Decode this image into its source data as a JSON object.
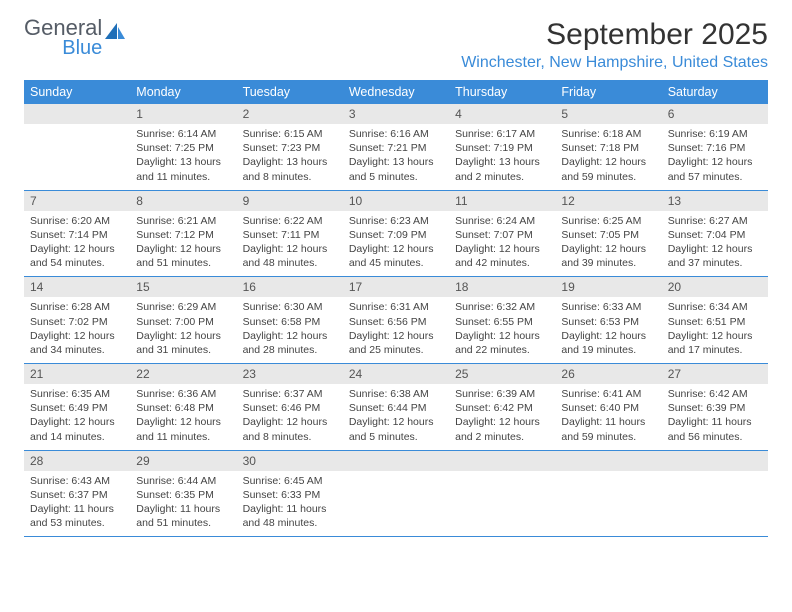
{
  "logo": {
    "line1": "General",
    "line2": "Blue"
  },
  "title": "September 2025",
  "location": "Winchester, New Hampshire, United States",
  "colors": {
    "header_bg": "#3a8bd8",
    "header_fg": "#ffffff",
    "daynum_bg": "#e8e8e8",
    "daynum_fg": "#555555",
    "text": "#444444",
    "location": "#3a8bd8",
    "title": "#333333",
    "border": "#3a8bd8",
    "logo_gray": "#555c66"
  },
  "fonts": {
    "title_pt": 30,
    "location_pt": 16,
    "header_pt": 12.5,
    "daynum_pt": 12,
    "body_pt": 10.5
  },
  "weekdays": [
    "Sunday",
    "Monday",
    "Tuesday",
    "Wednesday",
    "Thursday",
    "Friday",
    "Saturday"
  ],
  "weeks": [
    [
      null,
      {
        "n": "1",
        "sr": "Sunrise: 6:14 AM",
        "ss": "Sunset: 7:25 PM",
        "d1": "Daylight: 13 hours",
        "d2": "and 11 minutes."
      },
      {
        "n": "2",
        "sr": "Sunrise: 6:15 AM",
        "ss": "Sunset: 7:23 PM",
        "d1": "Daylight: 13 hours",
        "d2": "and 8 minutes."
      },
      {
        "n": "3",
        "sr": "Sunrise: 6:16 AM",
        "ss": "Sunset: 7:21 PM",
        "d1": "Daylight: 13 hours",
        "d2": "and 5 minutes."
      },
      {
        "n": "4",
        "sr": "Sunrise: 6:17 AM",
        "ss": "Sunset: 7:19 PM",
        "d1": "Daylight: 13 hours",
        "d2": "and 2 minutes."
      },
      {
        "n": "5",
        "sr": "Sunrise: 6:18 AM",
        "ss": "Sunset: 7:18 PM",
        "d1": "Daylight: 12 hours",
        "d2": "and 59 minutes."
      },
      {
        "n": "6",
        "sr": "Sunrise: 6:19 AM",
        "ss": "Sunset: 7:16 PM",
        "d1": "Daylight: 12 hours",
        "d2": "and 57 minutes."
      }
    ],
    [
      {
        "n": "7",
        "sr": "Sunrise: 6:20 AM",
        "ss": "Sunset: 7:14 PM",
        "d1": "Daylight: 12 hours",
        "d2": "and 54 minutes."
      },
      {
        "n": "8",
        "sr": "Sunrise: 6:21 AM",
        "ss": "Sunset: 7:12 PM",
        "d1": "Daylight: 12 hours",
        "d2": "and 51 minutes."
      },
      {
        "n": "9",
        "sr": "Sunrise: 6:22 AM",
        "ss": "Sunset: 7:11 PM",
        "d1": "Daylight: 12 hours",
        "d2": "and 48 minutes."
      },
      {
        "n": "10",
        "sr": "Sunrise: 6:23 AM",
        "ss": "Sunset: 7:09 PM",
        "d1": "Daylight: 12 hours",
        "d2": "and 45 minutes."
      },
      {
        "n": "11",
        "sr": "Sunrise: 6:24 AM",
        "ss": "Sunset: 7:07 PM",
        "d1": "Daylight: 12 hours",
        "d2": "and 42 minutes."
      },
      {
        "n": "12",
        "sr": "Sunrise: 6:25 AM",
        "ss": "Sunset: 7:05 PM",
        "d1": "Daylight: 12 hours",
        "d2": "and 39 minutes."
      },
      {
        "n": "13",
        "sr": "Sunrise: 6:27 AM",
        "ss": "Sunset: 7:04 PM",
        "d1": "Daylight: 12 hours",
        "d2": "and 37 minutes."
      }
    ],
    [
      {
        "n": "14",
        "sr": "Sunrise: 6:28 AM",
        "ss": "Sunset: 7:02 PM",
        "d1": "Daylight: 12 hours",
        "d2": "and 34 minutes."
      },
      {
        "n": "15",
        "sr": "Sunrise: 6:29 AM",
        "ss": "Sunset: 7:00 PM",
        "d1": "Daylight: 12 hours",
        "d2": "and 31 minutes."
      },
      {
        "n": "16",
        "sr": "Sunrise: 6:30 AM",
        "ss": "Sunset: 6:58 PM",
        "d1": "Daylight: 12 hours",
        "d2": "and 28 minutes."
      },
      {
        "n": "17",
        "sr": "Sunrise: 6:31 AM",
        "ss": "Sunset: 6:56 PM",
        "d1": "Daylight: 12 hours",
        "d2": "and 25 minutes."
      },
      {
        "n": "18",
        "sr": "Sunrise: 6:32 AM",
        "ss": "Sunset: 6:55 PM",
        "d1": "Daylight: 12 hours",
        "d2": "and 22 minutes."
      },
      {
        "n": "19",
        "sr": "Sunrise: 6:33 AM",
        "ss": "Sunset: 6:53 PM",
        "d1": "Daylight: 12 hours",
        "d2": "and 19 minutes."
      },
      {
        "n": "20",
        "sr": "Sunrise: 6:34 AM",
        "ss": "Sunset: 6:51 PM",
        "d1": "Daylight: 12 hours",
        "d2": "and 17 minutes."
      }
    ],
    [
      {
        "n": "21",
        "sr": "Sunrise: 6:35 AM",
        "ss": "Sunset: 6:49 PM",
        "d1": "Daylight: 12 hours",
        "d2": "and 14 minutes."
      },
      {
        "n": "22",
        "sr": "Sunrise: 6:36 AM",
        "ss": "Sunset: 6:48 PM",
        "d1": "Daylight: 12 hours",
        "d2": "and 11 minutes."
      },
      {
        "n": "23",
        "sr": "Sunrise: 6:37 AM",
        "ss": "Sunset: 6:46 PM",
        "d1": "Daylight: 12 hours",
        "d2": "and 8 minutes."
      },
      {
        "n": "24",
        "sr": "Sunrise: 6:38 AM",
        "ss": "Sunset: 6:44 PM",
        "d1": "Daylight: 12 hours",
        "d2": "and 5 minutes."
      },
      {
        "n": "25",
        "sr": "Sunrise: 6:39 AM",
        "ss": "Sunset: 6:42 PM",
        "d1": "Daylight: 12 hours",
        "d2": "and 2 minutes."
      },
      {
        "n": "26",
        "sr": "Sunrise: 6:41 AM",
        "ss": "Sunset: 6:40 PM",
        "d1": "Daylight: 11 hours",
        "d2": "and 59 minutes."
      },
      {
        "n": "27",
        "sr": "Sunrise: 6:42 AM",
        "ss": "Sunset: 6:39 PM",
        "d1": "Daylight: 11 hours",
        "d2": "and 56 minutes."
      }
    ],
    [
      {
        "n": "28",
        "sr": "Sunrise: 6:43 AM",
        "ss": "Sunset: 6:37 PM",
        "d1": "Daylight: 11 hours",
        "d2": "and 53 minutes."
      },
      {
        "n": "29",
        "sr": "Sunrise: 6:44 AM",
        "ss": "Sunset: 6:35 PM",
        "d1": "Daylight: 11 hours",
        "d2": "and 51 minutes."
      },
      {
        "n": "30",
        "sr": "Sunrise: 6:45 AM",
        "ss": "Sunset: 6:33 PM",
        "d1": "Daylight: 11 hours",
        "d2": "and 48 minutes."
      },
      null,
      null,
      null,
      null
    ]
  ]
}
